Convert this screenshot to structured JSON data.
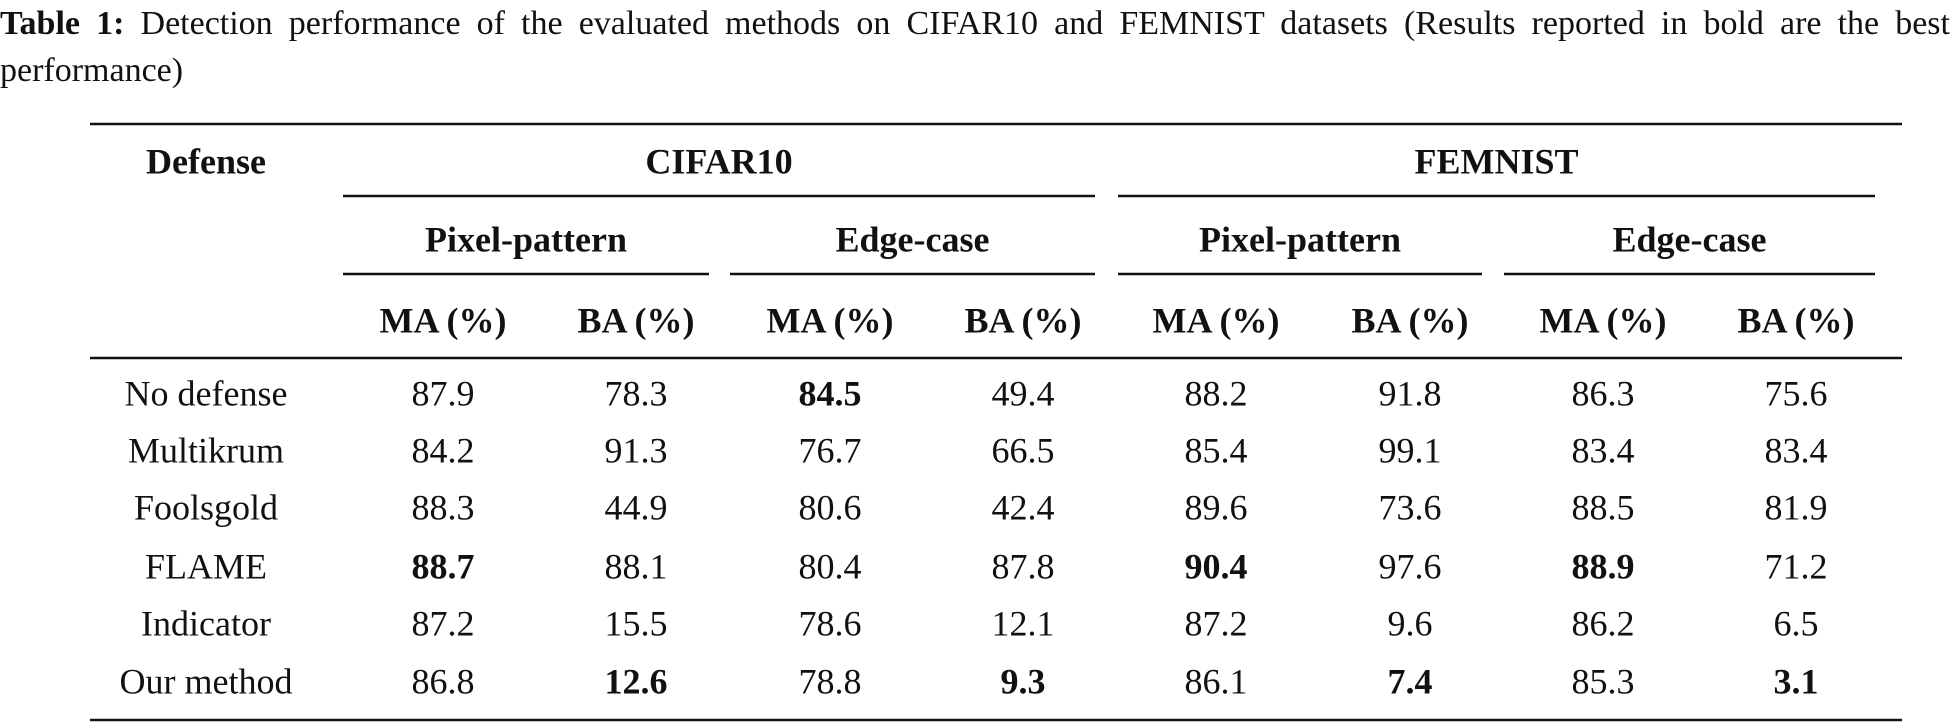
{
  "caption": {
    "label": "Table 1:",
    "text": "Detection performance of the evaluated methods on CIFAR10 and FEMNIST datasets (Results reported in bold are the best performance)"
  },
  "table": {
    "header": {
      "defense": "Defense",
      "groups": [
        {
          "name": "CIFAR10",
          "subgroups": [
            "Pixel-pattern",
            "Edge-case"
          ]
        },
        {
          "name": "FEMNIST",
          "subgroups": [
            "Pixel-pattern",
            "Edge-case"
          ]
        }
      ],
      "metrics": [
        "MA (%)",
        "BA (%)",
        "MA (%)",
        "BA (%)",
        "MA (%)",
        "BA (%)",
        "MA (%)",
        "BA (%)"
      ]
    },
    "rows": [
      {
        "label": "No defense",
        "values": [
          "87.9",
          "78.3",
          "84.5",
          "49.4",
          "88.2",
          "91.8",
          "86.3",
          "75.6"
        ],
        "bold": [
          2
        ]
      },
      {
        "label": "Multikrum",
        "values": [
          "84.2",
          "91.3",
          "76.7",
          "66.5",
          "85.4",
          "99.1",
          "83.4",
          "83.4"
        ],
        "bold": []
      },
      {
        "label": "Foolsgold",
        "values": [
          "88.3",
          "44.9",
          "80.6",
          "42.4",
          "89.6",
          "73.6",
          "88.5",
          "81.9"
        ],
        "bold": []
      },
      {
        "label": "FLAME",
        "values": [
          "88.7",
          "88.1",
          "80.4",
          "87.8",
          "90.4",
          "97.6",
          "88.9",
          "71.2"
        ],
        "bold": [
          0,
          4,
          6
        ]
      },
      {
        "label": "Indicator",
        "values": [
          "87.2",
          "15.5",
          "78.6",
          "12.1",
          "87.2",
          "9.6",
          "86.2",
          "6.5"
        ],
        "bold": []
      },
      {
        "label": "Our method",
        "values": [
          "86.8",
          "12.6",
          "78.8",
          "9.3",
          "86.1",
          "7.4",
          "85.3",
          "3.1"
        ],
        "bold": [
          1,
          3,
          5,
          7
        ]
      }
    ]
  }
}
